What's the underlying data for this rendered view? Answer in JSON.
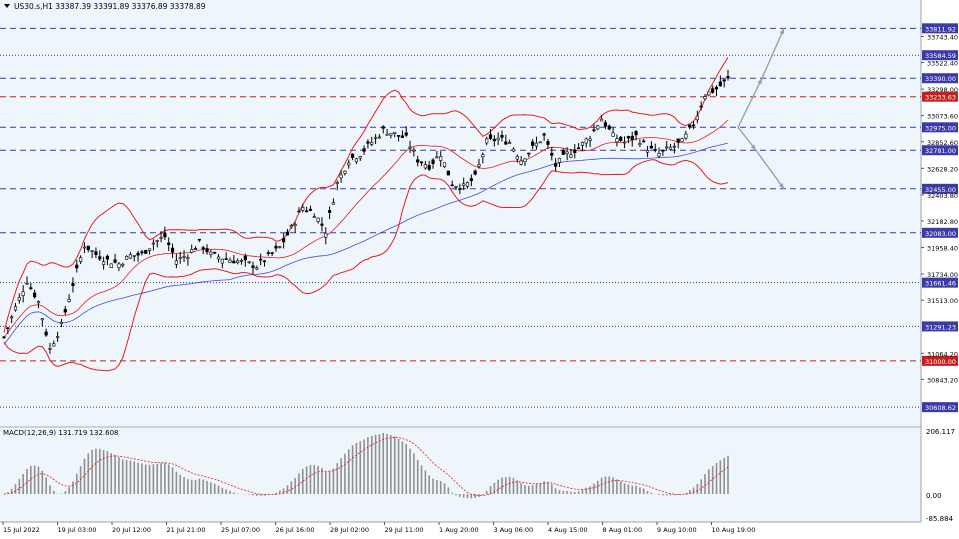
{
  "header": {
    "symbol_line": "US30.s,H1  33387.39 33391.89 33376.89 33378.89"
  },
  "macd": {
    "label": "MACD(12,26,9) 131.719 132.608",
    "axis_labels": [
      "206.117",
      "0.00",
      "-85.884"
    ]
  },
  "colors": {
    "background": "#eef6fc",
    "bollinger": "#e31e1e",
    "ma": "#3c4fd6",
    "candle": "#000000",
    "hline_blue": "#3a3aa8",
    "hline_red": "#c81e1e",
    "arrows": "#9aa0a8"
  },
  "chart_data": {
    "type": "candlestick",
    "instrument": "US30.s",
    "timeframe": "H1",
    "ohlc_header": {
      "open": 33387.39,
      "high": 33391.89,
      "low": 33376.89,
      "close": 33378.89
    },
    "ylim": [
      30500,
      33950
    ],
    "price_axis_labels": [
      "33743.40",
      "33522.40",
      "33298.00",
      "33073.60",
      "32852.60",
      "32628.20",
      "32403.80",
      "32182.80",
      "31958.40",
      "31734.00",
      "31513.00",
      "31064.20",
      "30843.20"
    ],
    "time_axis_labels": [
      "15 Jul 2022",
      "19 Jul 03:00",
      "20 Jul 12:00",
      "21 Jul 21:00",
      "25 Jul 07:00",
      "26 Jul 16:00",
      "28 Jul 02:00",
      "29 Jul 11:00",
      "1 Aug 20:00",
      "3 Aug 06:00",
      "4 Aug 15:00",
      "8 Aug 01:00",
      "9 Aug 10:00",
      "10 Aug 19:00"
    ],
    "horizontal_levels": [
      {
        "value": 33811.92,
        "color": "blue",
        "style": "dashed"
      },
      {
        "value": 33584.59,
        "color": "blue",
        "style": "dotted"
      },
      {
        "value": 33390.0,
        "color": "blue",
        "style": "dashed"
      },
      {
        "value": 33233.63,
        "color": "red",
        "style": "dashed"
      },
      {
        "value": 32975.0,
        "color": "blue",
        "style": "dashed"
      },
      {
        "value": 32781.0,
        "color": "blue",
        "style": "dashed"
      },
      {
        "value": 32455.0,
        "color": "blue",
        "style": "dashed"
      },
      {
        "value": 32083.0,
        "color": "blue",
        "style": "dashed"
      },
      {
        "value": 31661.46,
        "color": "blue",
        "style": "dotted"
      },
      {
        "value": 31291.23,
        "color": "blue",
        "style": "dotted"
      },
      {
        "value": 31000.0,
        "color": "red",
        "style": "dashed"
      },
      {
        "value": 30608.62,
        "color": "blue",
        "style": "dotted"
      }
    ],
    "close_path": [
      [
        0,
        31200
      ],
      [
        2,
        31450
      ],
      [
        4,
        31680
      ],
      [
        6,
        31500
      ],
      [
        8,
        31100
      ],
      [
        10,
        31300
      ],
      [
        12,
        31650
      ],
      [
        14,
        31980
      ],
      [
        16,
        31900
      ],
      [
        18,
        31850
      ],
      [
        20,
        31820
      ],
      [
        22,
        31890
      ],
      [
        24,
        31900
      ],
      [
        26,
        32000
      ],
      [
        28,
        32050
      ],
      [
        30,
        31850
      ],
      [
        32,
        31900
      ],
      [
        34,
        32000
      ],
      [
        36,
        31900
      ],
      [
        38,
        31870
      ],
      [
        40,
        31850
      ],
      [
        42,
        31830
      ],
      [
        44,
        31800
      ],
      [
        46,
        31880
      ],
      [
        48,
        31960
      ],
      [
        50,
        32120
      ],
      [
        52,
        32300
      ],
      [
        54,
        32250
      ],
      [
        56,
        32100
      ],
      [
        58,
        32500
      ],
      [
        60,
        32700
      ],
      [
        62,
        32750
      ],
      [
        64,
        32850
      ],
      [
        66,
        32950
      ],
      [
        68,
        32920
      ],
      [
        70,
        32880
      ],
      [
        72,
        32700
      ],
      [
        74,
        32650
      ],
      [
        76,
        32750
      ],
      [
        78,
        32500
      ],
      [
        80,
        32470
      ],
      [
        82,
        32550
      ],
      [
        84,
        32850
      ],
      [
        86,
        32880
      ],
      [
        88,
        32850
      ],
      [
        90,
        32700
      ],
      [
        92,
        32800
      ],
      [
        94,
        32900
      ],
      [
        96,
        32650
      ],
      [
        98,
        32750
      ],
      [
        100,
        32800
      ],
      [
        102,
        32900
      ],
      [
        104,
        33050
      ],
      [
        106,
        32900
      ],
      [
        108,
        32850
      ],
      [
        110,
        32900
      ],
      [
        112,
        32800
      ],
      [
        114,
        32750
      ],
      [
        116,
        32800
      ],
      [
        118,
        32850
      ],
      [
        120,
        33000
      ],
      [
        122,
        33250
      ],
      [
        124,
        33300
      ],
      [
        126,
        33380
      ]
    ]
  }
}
